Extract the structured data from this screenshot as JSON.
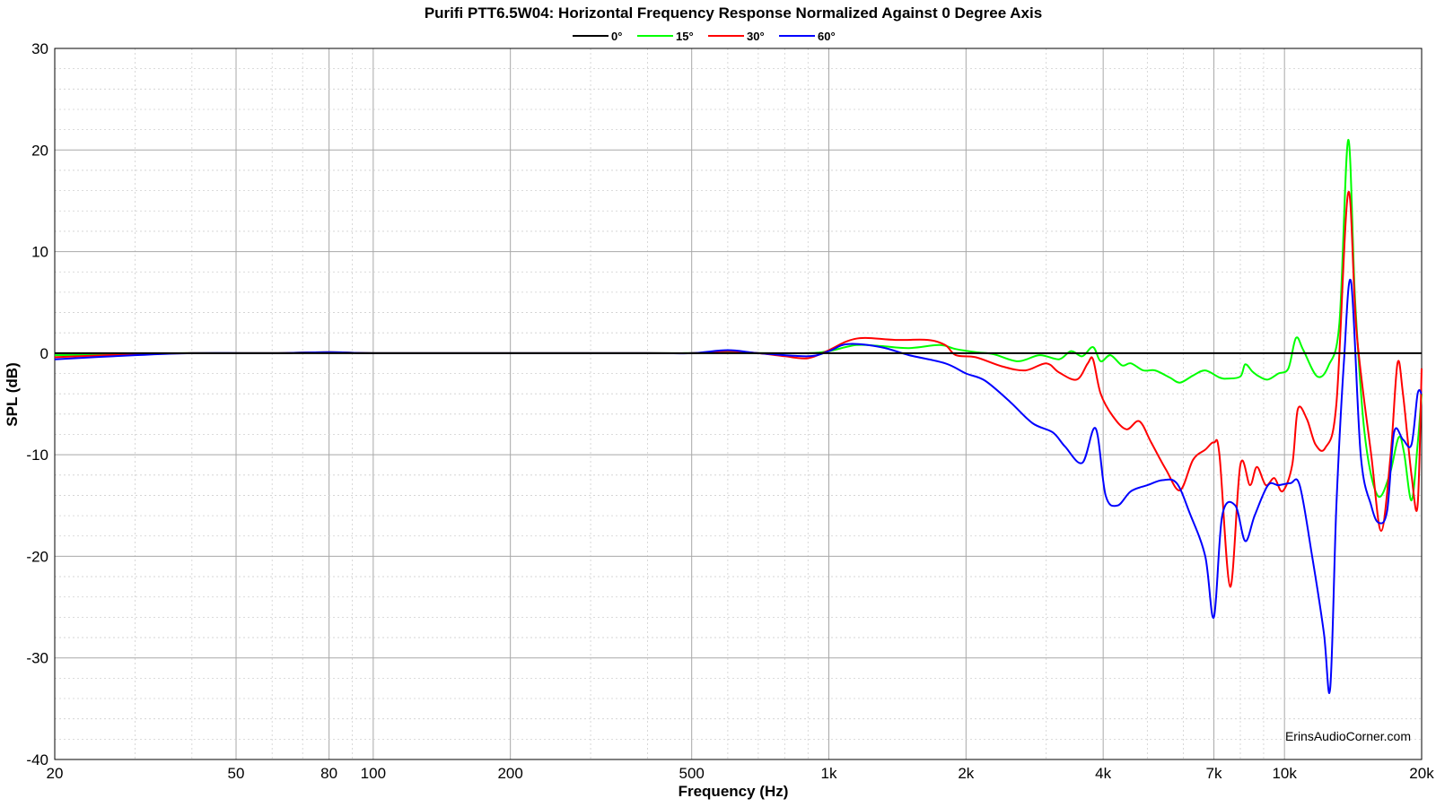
{
  "chart_data": {
    "type": "line",
    "title": "Purifi PTT6.5W04: Horizontal Frequency Response Normalized Against 0 Degree Axis",
    "xlabel": "Frequency (Hz)",
    "ylabel": "SPL (dB)",
    "xscale": "log",
    "xlim": [
      20,
      20000
    ],
    "ylim": [
      -40,
      30
    ],
    "x_ticks": [
      {
        "value": 20,
        "label": "20"
      },
      {
        "value": 50,
        "label": "50"
      },
      {
        "value": 80,
        "label": "80"
      },
      {
        "value": 100,
        "label": "100"
      },
      {
        "value": 200,
        "label": "200"
      },
      {
        "value": 500,
        "label": "500"
      },
      {
        "value": 1000,
        "label": "1k"
      },
      {
        "value": 2000,
        "label": "2k"
      },
      {
        "value": 4000,
        "label": "4k"
      },
      {
        "value": 7000,
        "label": "7k"
      },
      {
        "value": 10000,
        "label": "10k"
      },
      {
        "value": 20000,
        "label": "20k"
      }
    ],
    "y_ticks": [
      30,
      20,
      10,
      0,
      -10,
      -20,
      -30,
      -40
    ],
    "grid": true,
    "legend": "top-center",
    "watermark": "ErinsAudioCorner.com",
    "series": [
      {
        "name": "0°",
        "color": "#000000",
        "points": [
          [
            20,
            0
          ],
          [
            20000,
            0
          ]
        ]
      },
      {
        "name": "15°",
        "color": "#00ff00",
        "points": [
          [
            20,
            -0.2
          ],
          [
            30,
            -0.1
          ],
          [
            40,
            0
          ],
          [
            60,
            0
          ],
          [
            80,
            0.1
          ],
          [
            100,
            0
          ],
          [
            200,
            0
          ],
          [
            400,
            0
          ],
          [
            500,
            0
          ],
          [
            600,
            0.1
          ],
          [
            700,
            0
          ],
          [
            900,
            0
          ],
          [
            1000,
            0.2
          ],
          [
            1150,
            0.8
          ],
          [
            1300,
            0.7
          ],
          [
            1500,
            0.5
          ],
          [
            1750,
            0.8
          ],
          [
            1900,
            0.4
          ],
          [
            2100,
            0.1
          ],
          [
            2300,
            -0.1
          ],
          [
            2600,
            -0.8
          ],
          [
            2900,
            -0.2
          ],
          [
            3200,
            -0.6
          ],
          [
            3400,
            0.2
          ],
          [
            3600,
            -0.3
          ],
          [
            3800,
            0.6
          ],
          [
            3950,
            -0.8
          ],
          [
            4150,
            -0.2
          ],
          [
            4400,
            -1.2
          ],
          [
            4600,
            -1
          ],
          [
            4900,
            -1.7
          ],
          [
            5200,
            -1.7
          ],
          [
            5600,
            -2.4
          ],
          [
            5900,
            -2.9
          ],
          [
            6300,
            -2.2
          ],
          [
            6700,
            -1.7
          ],
          [
            7200,
            -2.4
          ],
          [
            7500,
            -2.5
          ],
          [
            8000,
            -2.3
          ],
          [
            8200,
            -1.1
          ],
          [
            8500,
            -1.8
          ],
          [
            8800,
            -2.3
          ],
          [
            9200,
            -2.6
          ],
          [
            9700,
            -2
          ],
          [
            10200,
            -1.5
          ],
          [
            10600,
            1.5
          ],
          [
            11000,
            0.3
          ],
          [
            11800,
            -2.3
          ],
          [
            12500,
            -1.2
          ],
          [
            13200,
            3
          ],
          [
            13800,
            21
          ],
          [
            14300,
            5
          ],
          [
            15000,
            -8
          ],
          [
            16000,
            -14
          ],
          [
            17000,
            -12
          ],
          [
            17800,
            -8.3
          ],
          [
            18300,
            -9.8
          ],
          [
            19000,
            -14.5
          ],
          [
            19600,
            -9
          ],
          [
            20000,
            -4
          ]
        ]
      },
      {
        "name": "30°",
        "color": "#ff0000",
        "points": [
          [
            20,
            -0.4
          ],
          [
            30,
            -0.1
          ],
          [
            40,
            0
          ],
          [
            60,
            0
          ],
          [
            80,
            0.1
          ],
          [
            100,
            0
          ],
          [
            200,
            0
          ],
          [
            400,
            0
          ],
          [
            500,
            0
          ],
          [
            600,
            0.2
          ],
          [
            700,
            0
          ],
          [
            800,
            -0.3
          ],
          [
            900,
            -0.5
          ],
          [
            1000,
            0.3
          ],
          [
            1100,
            1.2
          ],
          [
            1200,
            1.5
          ],
          [
            1400,
            1.3
          ],
          [
            1650,
            1.3
          ],
          [
            1800,
            0.8
          ],
          [
            1900,
            -0.2
          ],
          [
            2100,
            -0.4
          ],
          [
            2400,
            -1.3
          ],
          [
            2700,
            -1.7
          ],
          [
            3000,
            -1
          ],
          [
            3200,
            -1.9
          ],
          [
            3500,
            -2.6
          ],
          [
            3700,
            -1
          ],
          [
            3800,
            -0.6
          ],
          [
            3950,
            -4
          ],
          [
            4200,
            -6.2
          ],
          [
            4500,
            -7.5
          ],
          [
            4800,
            -6.7
          ],
          [
            5100,
            -8.8
          ],
          [
            5500,
            -11.5
          ],
          [
            5900,
            -13.5
          ],
          [
            6300,
            -10.5
          ],
          [
            6700,
            -9.5
          ],
          [
            7000,
            -8.8
          ],
          [
            7200,
            -10
          ],
          [
            7600,
            -23
          ],
          [
            8000,
            -11
          ],
          [
            8400,
            -13
          ],
          [
            8700,
            -11.2
          ],
          [
            9100,
            -13
          ],
          [
            9500,
            -12.3
          ],
          [
            9900,
            -13.6
          ],
          [
            10400,
            -11
          ],
          [
            10700,
            -5.5
          ],
          [
            11200,
            -6.5
          ],
          [
            11700,
            -9
          ],
          [
            12300,
            -9.3
          ],
          [
            13000,
            -5
          ],
          [
            13800,
            15.8
          ],
          [
            14400,
            2
          ],
          [
            15500,
            -10
          ],
          [
            16300,
            -17.5
          ],
          [
            17100,
            -10
          ],
          [
            17700,
            -1
          ],
          [
            18200,
            -4
          ],
          [
            19000,
            -12
          ],
          [
            19600,
            -15
          ],
          [
            20000,
            -1.5
          ]
        ]
      },
      {
        "name": "60°",
        "color": "#0000ff",
        "points": [
          [
            20,
            -0.6
          ],
          [
            30,
            -0.2
          ],
          [
            40,
            0
          ],
          [
            60,
            0
          ],
          [
            80,
            0.1
          ],
          [
            100,
            0
          ],
          [
            200,
            0
          ],
          [
            400,
            0
          ],
          [
            500,
            0
          ],
          [
            600,
            0.3
          ],
          [
            700,
            0
          ],
          [
            900,
            -0.3
          ],
          [
            1000,
            0.2
          ],
          [
            1100,
            0.9
          ],
          [
            1300,
            0.6
          ],
          [
            1500,
            -0.2
          ],
          [
            1800,
            -1
          ],
          [
            2000,
            -2
          ],
          [
            2200,
            -2.7
          ],
          [
            2500,
            -4.8
          ],
          [
            2800,
            -6.9
          ],
          [
            3100,
            -7.8
          ],
          [
            3300,
            -9.2
          ],
          [
            3600,
            -10.8
          ],
          [
            3850,
            -7.4
          ],
          [
            4050,
            -14
          ],
          [
            4300,
            -15
          ],
          [
            4600,
            -13.6
          ],
          [
            5000,
            -13
          ],
          [
            5400,
            -12.5
          ],
          [
            5800,
            -12.8
          ],
          [
            6200,
            -15.8
          ],
          [
            6700,
            -20
          ],
          [
            7000,
            -26
          ],
          [
            7300,
            -16
          ],
          [
            7800,
            -15
          ],
          [
            8200,
            -18.5
          ],
          [
            8600,
            -16
          ],
          [
            9200,
            -13
          ],
          [
            9700,
            -13
          ],
          [
            10300,
            -12.8
          ],
          [
            10800,
            -13
          ],
          [
            11500,
            -20
          ],
          [
            12200,
            -27.5
          ],
          [
            12600,
            -33
          ],
          [
            13000,
            -15
          ],
          [
            13500,
            -1
          ],
          [
            14000,
            7
          ],
          [
            14700,
            -10
          ],
          [
            15500,
            -15
          ],
          [
            16100,
            -16.7
          ],
          [
            16800,
            -15.5
          ],
          [
            17400,
            -7.8
          ],
          [
            18200,
            -8.5
          ],
          [
            19000,
            -9
          ],
          [
            19600,
            -4
          ],
          [
            20000,
            -4
          ]
        ]
      }
    ]
  }
}
